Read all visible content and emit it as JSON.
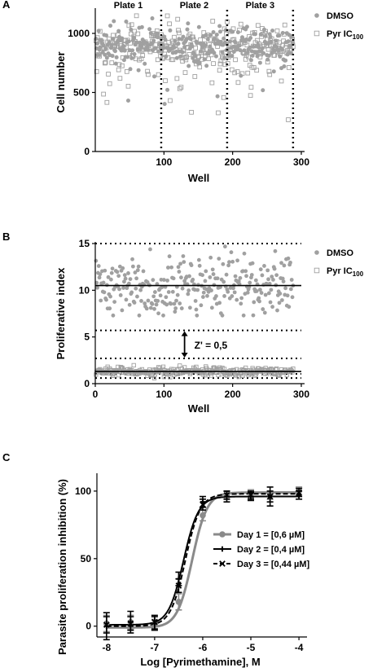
{
  "panels": [
    {
      "letter": "A"
    },
    {
      "letter": "B"
    },
    {
      "letter": "C"
    }
  ],
  "chart_data": [
    {
      "type": "scatter",
      "ylabel": "Cell number",
      "xlabel": "Well",
      "xlim": [
        0,
        300
      ],
      "ylim": [
        0,
        1200
      ],
      "xticks": [
        100,
        200,
        300
      ],
      "yticks": [
        0,
        500,
        1000
      ],
      "grid": false,
      "legend": "right",
      "plate_dividers": [
        96,
        192,
        288
      ],
      "plates": [
        {
          "label": "Plate 1",
          "x": 48
        },
        {
          "label": "Plate 2",
          "x": 144
        },
        {
          "label": "Plate 3",
          "x": 240
        }
      ],
      "series": [
        {
          "name": "DMSO",
          "marker": "filled-circle",
          "color": "#a0a0a0",
          "n_points": 288,
          "mean": 900,
          "spread": 85
        },
        {
          "name": "Pyr IC100",
          "subscript": "100",
          "marker": "open-square",
          "color": "#a0a0a0",
          "n_points": 288,
          "mean": 870,
          "spread": 110
        }
      ]
    },
    {
      "type": "scatter",
      "ylabel": "Proliferative index",
      "xlabel": "Well",
      "xlim": [
        0,
        300
      ],
      "ylim": [
        0,
        15
      ],
      "xticks": [
        0,
        100,
        200,
        300
      ],
      "yticks": [
        0,
        5,
        10,
        15
      ],
      "grid": false,
      "legend": "right",
      "mean_lines": [
        10.5,
        1.3
      ],
      "threshold_lines": [
        15,
        5.7,
        2.7,
        1.05,
        0.6
      ],
      "zprime": {
        "text": "Z' = 0,5",
        "x": 130,
        "y_from": 5.7,
        "y_to": 2.7
      },
      "series": [
        {
          "name": "DMSO",
          "marker": "filled-circle",
          "color": "#a0a0a0",
          "n_points": 288,
          "mean": 10.5,
          "spread": 1.6
        },
        {
          "name": "Pyr IC100",
          "subscript": "100",
          "marker": "open-square",
          "color": "#a0a0a0",
          "n_points": 288,
          "mean": 1.3,
          "spread": 0.25
        }
      ]
    },
    {
      "type": "line",
      "ylabel": "Parasite proliferation inhibition (%)",
      "xlabel": "Log [Pyrimethamine], M",
      "xlim": [
        -8.2,
        -3.9
      ],
      "ylim": [
        -8,
        112
      ],
      "xticks": [
        -8,
        -7,
        -6,
        -5,
        -4
      ],
      "yticks": [
        0,
        50,
        100
      ],
      "grid": false,
      "legend": "bottom-right",
      "x": [
        -8,
        -7.5,
        -7,
        -6.5,
        -6,
        -5.5,
        -5,
        -4.6,
        -4
      ],
      "series": [
        {
          "name": "Day 1",
          "label_value": "[0,6 µM]",
          "legend_label": "Day 1 = [0,6 µM]",
          "color": "#8a8a8a",
          "marker": "circle",
          "dash": "solid",
          "ic50_log": -6.22,
          "hill": 2.8,
          "bottom": -1,
          "top": 99,
          "y": [
            2,
            3,
            1,
            18,
            82,
            97,
            98,
            97,
            100
          ],
          "err": [
            6,
            5,
            4,
            6,
            4,
            3,
            3,
            3,
            3
          ]
        },
        {
          "name": "Day 2",
          "label_value": "[0,4 µM]",
          "legend_label": "Day 2 = [0,4 µM]",
          "color": "#000000",
          "marker": "plus",
          "dash": "solid",
          "ic50_log": -6.4,
          "hill": 2.8,
          "bottom": 1,
          "top": 96,
          "y": [
            0,
            3,
            2,
            35,
            92,
            96,
            96,
            96,
            97
          ],
          "err": [
            10,
            8,
            5,
            5,
            4,
            4,
            3,
            7,
            3
          ]
        },
        {
          "name": "Day 3",
          "label_value": "[0,44 µM]",
          "legend_label": "Day 3 = [0,44 µM]",
          "color": "#000000",
          "marker": "cross",
          "dash": "dashed",
          "ic50_log": -6.36,
          "hill": 2.8,
          "bottom": 0,
          "top": 98,
          "y": [
            1,
            2,
            3,
            30,
            90,
            97,
            97,
            96,
            99
          ],
          "err": [
            6,
            5,
            5,
            5,
            4,
            3,
            3,
            4,
            3
          ]
        }
      ]
    }
  ]
}
